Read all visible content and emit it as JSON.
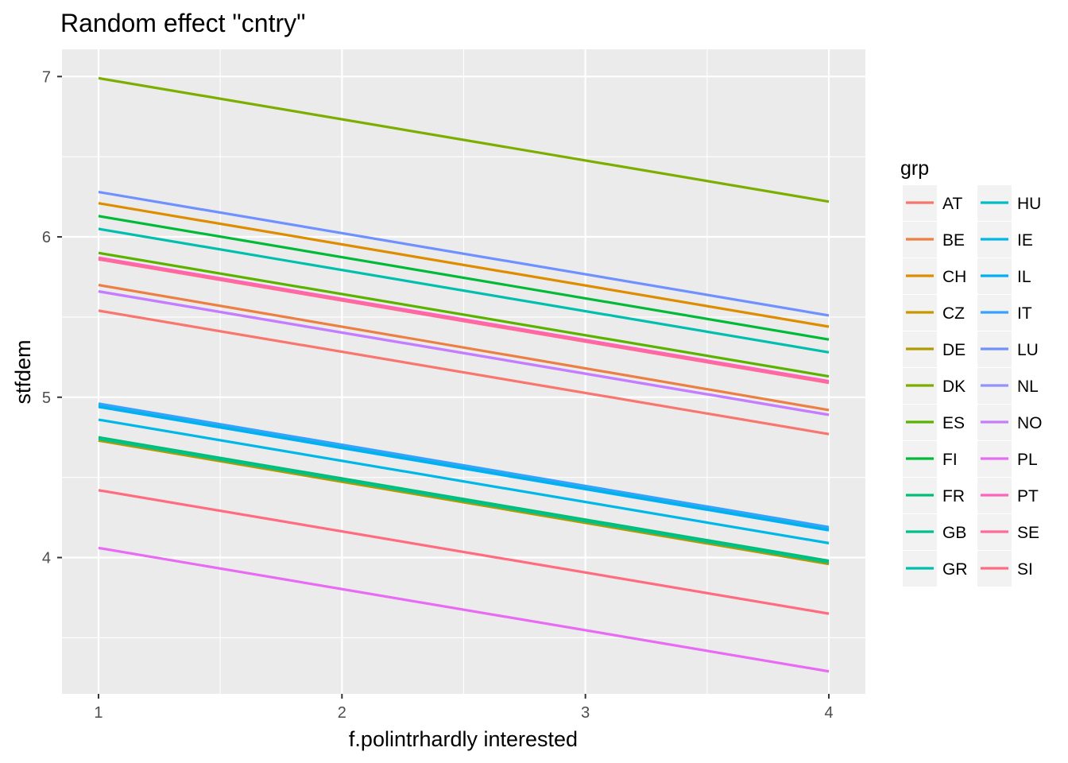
{
  "chart_data": {
    "type": "line",
    "title": "Random effect \"cntry\"",
    "xlabel": "f.polintrhardly interested",
    "ylabel": "stfdem",
    "x": [
      1,
      4
    ],
    "xlim": [
      0.85,
      4.15
    ],
    "ylim": [
      3.15,
      7.17
    ],
    "x_ticks": [
      1,
      2,
      3,
      4
    ],
    "y_ticks": [
      4,
      5,
      6,
      7
    ],
    "grid": true,
    "legend_title": "grp",
    "legend_position": "right",
    "series": [
      {
        "name": "AT",
        "color": "#F8766D",
        "values": [
          5.54,
          4.77
        ]
      },
      {
        "name": "BE",
        "color": "#EC7F43",
        "values": [
          5.7,
          4.92
        ]
      },
      {
        "name": "CH",
        "color": "#DE8C00",
        "values": [
          6.21,
          5.44
        ]
      },
      {
        "name": "CZ",
        "color": "#C99800",
        "values": [
          4.73,
          3.96
        ]
      },
      {
        "name": "DE",
        "color": "#B09C00",
        "values": [
          4.73,
          3.96
        ]
      },
      {
        "name": "DK",
        "color": "#7CAE00",
        "values": [
          6.99,
          6.22
        ]
      },
      {
        "name": "ES",
        "color": "#5BB300",
        "values": [
          5.9,
          5.13
        ]
      },
      {
        "name": "FI",
        "color": "#00BA38",
        "values": [
          6.13,
          5.36
        ]
      },
      {
        "name": "FR",
        "color": "#00BF74",
        "values": [
          4.75,
          3.98
        ]
      },
      {
        "name": "GB",
        "color": "#00C08B",
        "values": [
          4.74,
          3.97
        ]
      },
      {
        "name": "GR",
        "color": "#00BFAE",
        "values": [
          6.05,
          5.28
        ]
      },
      {
        "name": "HU",
        "color": "#00BEC4",
        "values": [
          4.95,
          4.18
        ]
      },
      {
        "name": "IE",
        "color": "#00B8E7",
        "values": [
          4.86,
          4.09
        ]
      },
      {
        "name": "IL",
        "color": "#00B0F6",
        "values": [
          4.94,
          4.17
        ]
      },
      {
        "name": "IT",
        "color": "#35A2FF",
        "values": [
          4.96,
          4.19
        ]
      },
      {
        "name": "LU",
        "color": "#6F90FF",
        "values": [
          6.28,
          5.51
        ]
      },
      {
        "name": "NL",
        "color": "#9590FF",
        "values": [
          5.66,
          4.89
        ]
      },
      {
        "name": "NO",
        "color": "#C77CFF",
        "values": [
          5.66,
          4.89
        ]
      },
      {
        "name": "PL",
        "color": "#E76BF3",
        "values": [
          4.06,
          3.29
        ]
      },
      {
        "name": "PT",
        "color": "#FF62BC",
        "values": [
          5.87,
          5.1
        ]
      },
      {
        "name": "SE",
        "color": "#FF6A98",
        "values": [
          5.86,
          5.09
        ]
      },
      {
        "name": "SI",
        "color": "#FF6C7F",
        "values": [
          4.42,
          3.65
        ]
      }
    ]
  }
}
